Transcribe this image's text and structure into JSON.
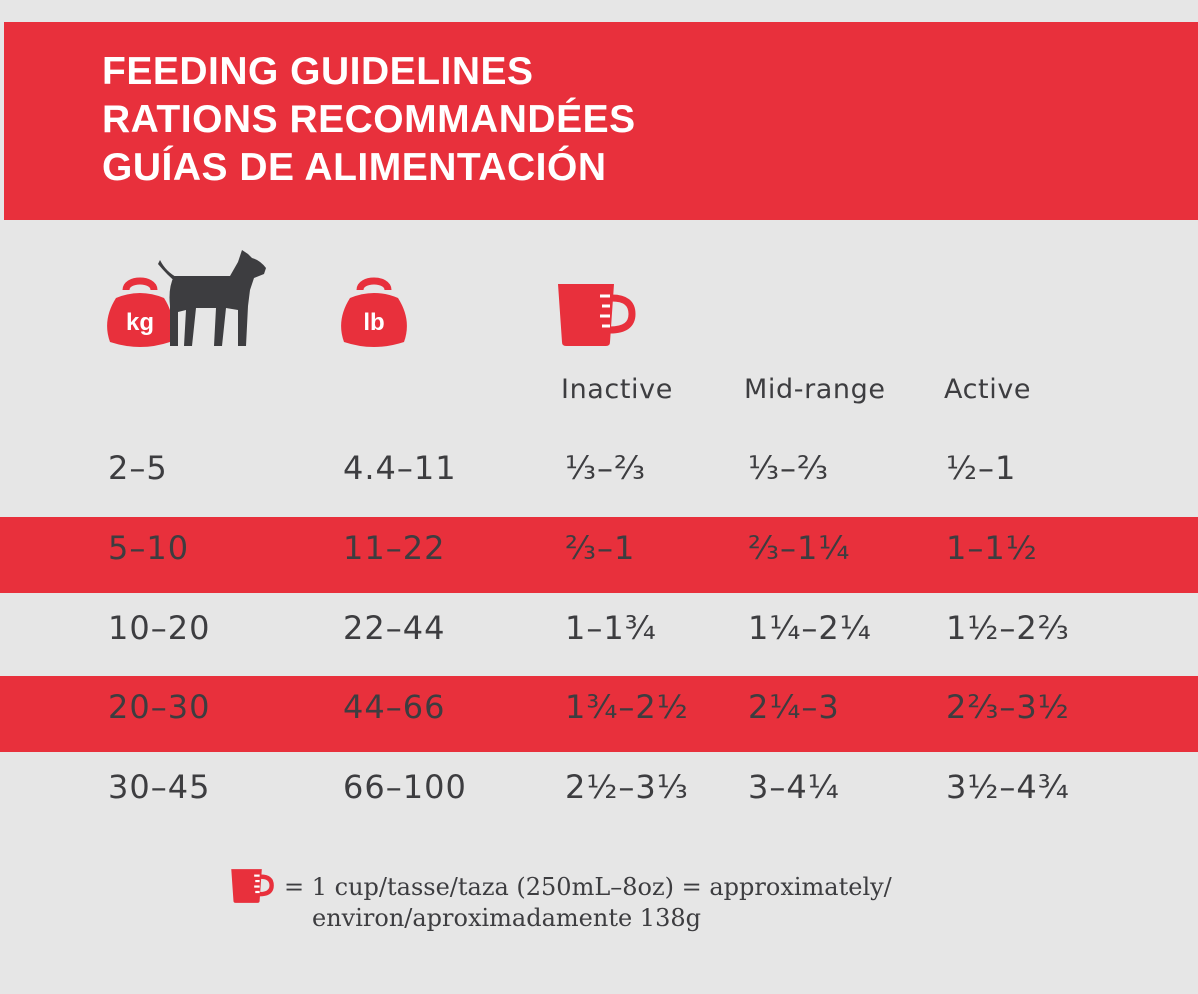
{
  "header": {
    "title_lines": [
      "FEEDING GUIDELINES",
      "RATIONS RECOMMANDÉES",
      "GUÍAS DE ALIMENTACIÓN"
    ]
  },
  "icons": {
    "weight_kg": {
      "name": "kettlebell-icon",
      "label": "kg"
    },
    "dog": {
      "name": "dog-icon"
    },
    "weight_lb": {
      "name": "kettlebell-icon",
      "label": "lb"
    },
    "cup": {
      "name": "measuring-cup-icon"
    }
  },
  "colors": {
    "accent": "#e8303c",
    "background": "#e6e6e6",
    "text": "#3d3d40",
    "dog": "#3d3d40"
  },
  "table": {
    "activity_headers": [
      "Inactive",
      "Mid-range",
      "Active"
    ],
    "rows": [
      {
        "kg": "2–5",
        "lb": "4.4–11",
        "inactive": "⅓–⅔",
        "mid": "⅓–⅔",
        "active": "½–1"
      },
      {
        "kg": "5–10",
        "lb": "11–22",
        "inactive": "⅔–1",
        "mid": "⅔–1¼",
        "active": "1–1½"
      },
      {
        "kg": "10–20",
        "lb": "22–44",
        "inactive": "1–1¾",
        "mid": "1¼–2¼",
        "active": "1½–2⅔"
      },
      {
        "kg": "20–30",
        "lb": "44–66",
        "inactive": "1¾–2½",
        "mid": "2¼–3",
        "active": "2⅔–3½"
      },
      {
        "kg": "30–45",
        "lb": "66–100",
        "inactive": "2½–3⅓",
        "mid": "3–4¼",
        "active": "3½–4¾"
      }
    ],
    "highlighted_rows": [
      1,
      3
    ]
  },
  "footnote": {
    "line1": "= 1 cup/tasse/taza (250mL–8oz) = approximately/",
    "line2": "environ/aproximadamente 138g"
  }
}
